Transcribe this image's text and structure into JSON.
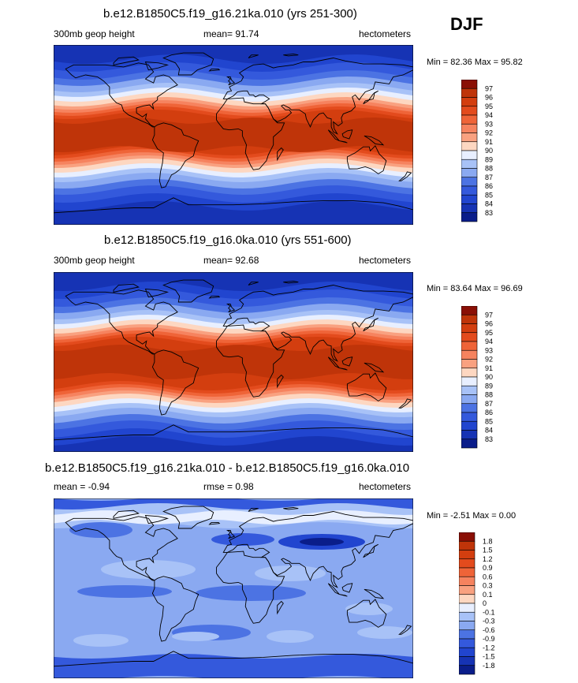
{
  "season": "DJF",
  "colors": {
    "warm": [
      "#fff0e0",
      "#fdd7c1",
      "#fcbfa2",
      "#f9a180",
      "#f6835f",
      "#ef6438",
      "#e34b1d",
      "#d33e0f",
      "#bf3409",
      "#8a0f05"
    ],
    "cool": [
      "#e8efff",
      "#c8d8fb",
      "#a8c2f7",
      "#8aa9f1",
      "#6a8eea",
      "#4c73e3",
      "#3459dc",
      "#2145cf",
      "#1633b4",
      "#0a1d8a"
    ],
    "coast": "#000000"
  },
  "panels": [
    {
      "title": "b.e12.B1850C5.f19_g16.21ka.010 (yrs 251-300)",
      "left_label": "300mb geop height",
      "center_label": "mean=  91.74",
      "right_label": "hectometers",
      "minmax": "Min =  82.36 Max =  95.82",
      "colorbar": [
        "97",
        "96",
        "95",
        "94",
        "93",
        "92",
        "91",
        "90",
        "89",
        "88",
        "87",
        "86",
        "85",
        "84",
        "83"
      ]
    },
    {
      "title": "b.e12.B1850C5.f19_g16.0ka.010 (yrs 551-600)",
      "left_label": "300mb geop height",
      "center_label": "mean=  92.68",
      "right_label": "hectometers",
      "minmax": "Min =  83.64 Max =  96.69",
      "colorbar": [
        "97",
        "96",
        "95",
        "94",
        "93",
        "92",
        "91",
        "90",
        "89",
        "88",
        "87",
        "86",
        "85",
        "84",
        "83"
      ]
    },
    {
      "title": "b.e12.B1850C5.f19_g16.21ka.010 - b.e12.B1850C5.f19_g16.0ka.010",
      "left_label": "mean =  -0.94",
      "center_label": "rmse =   0.98",
      "right_label": "hectometers",
      "minmax": "Min =  -2.51 Max =   0.00",
      "colorbar": [
        "1.8",
        "1.5",
        "1.2",
        "0.9",
        "0.6",
        "0.3",
        "0.1",
        "0",
        "-0.1",
        "-0.3",
        "-0.6",
        "-0.9",
        "-1.2",
        "-1.5",
        "-1.8"
      ]
    }
  ]
}
